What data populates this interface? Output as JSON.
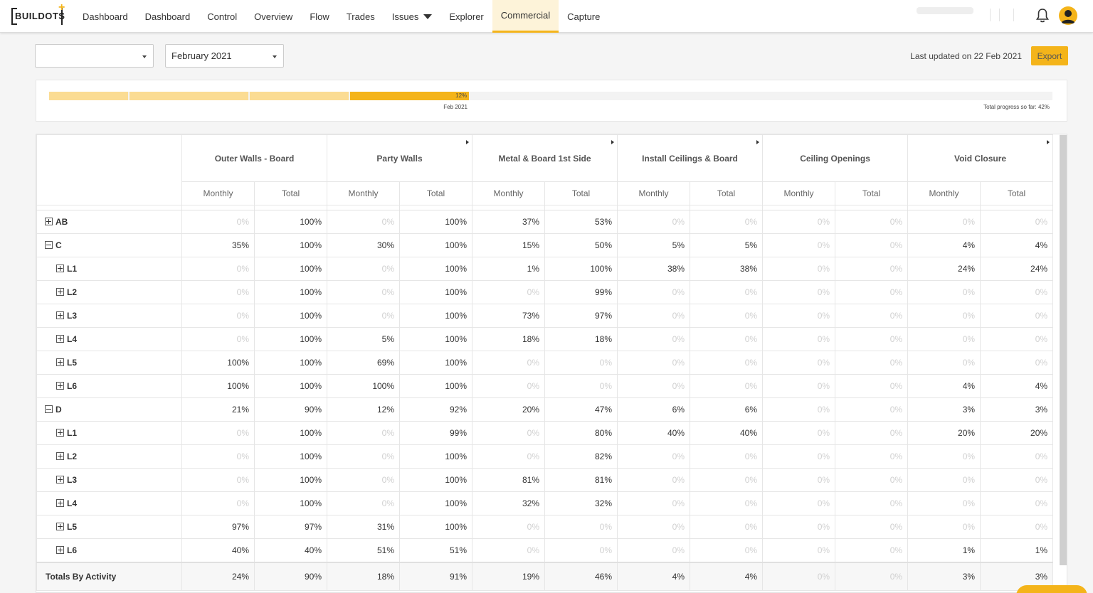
{
  "brand": {
    "logo_text": "BUILDOTS",
    "accent": "#f4b41a"
  },
  "nav": {
    "items": [
      {
        "label": "Dashboard",
        "name": "nav-dashboard-1"
      },
      {
        "label": "Dashboard",
        "name": "nav-dashboard-2"
      },
      {
        "label": "Control",
        "name": "nav-control"
      },
      {
        "label": "Overview",
        "name": "nav-overview"
      },
      {
        "label": "Flow",
        "name": "nav-flow"
      },
      {
        "label": "Trades",
        "name": "nav-trades"
      },
      {
        "label": "Issues",
        "name": "nav-issues",
        "dropdown": true
      },
      {
        "label": "Explorer",
        "name": "nav-explorer"
      },
      {
        "label": "Commercial",
        "name": "nav-commercial",
        "active": true
      },
      {
        "label": "Capture",
        "name": "nav-capture"
      }
    ],
    "icons": [
      "bell-icon",
      "user-avatar-icon"
    ]
  },
  "controls": {
    "project_select": "",
    "month_select": "February 2021",
    "last_updated": "Last updated on 22 Feb 2021",
    "export_label": "Export"
  },
  "progress": {
    "segments_fraction": [
      0.08,
      0.12,
      0.1,
      0.12
    ],
    "current_label": "12%",
    "current_date": "Feb 2021",
    "total_label": "Total progress so far: 42%",
    "total_fraction": 0.42
  },
  "table": {
    "activities": [
      {
        "name": "Outer Walls - Board",
        "sortable": false
      },
      {
        "name": "Party Walls",
        "sortable": true
      },
      {
        "name": "Metal & Board 1st Side",
        "sortable": true
      },
      {
        "name": "Install Ceilings & Board",
        "sortable": true
      },
      {
        "name": "Ceiling Openings",
        "sortable": false
      },
      {
        "name": "Void Closure",
        "sortable": true
      }
    ],
    "sub_headers": [
      "Monthly",
      "Total"
    ],
    "rows": [
      {
        "label": "AB",
        "level": 0,
        "toggle": "plus",
        "values": [
          "0%",
          "100%",
          "0%",
          "100%",
          "37%",
          "53%",
          "0%",
          "0%",
          "0%",
          "0%",
          "0%",
          "0%"
        ]
      },
      {
        "label": "C",
        "level": 0,
        "toggle": "minus",
        "values": [
          "35%",
          "100%",
          "30%",
          "100%",
          "15%",
          "50%",
          "5%",
          "5%",
          "0%",
          "0%",
          "4%",
          "4%"
        ]
      },
      {
        "label": "L1",
        "level": 1,
        "toggle": "plus",
        "values": [
          "0%",
          "100%",
          "0%",
          "100%",
          "1%",
          "100%",
          "38%",
          "38%",
          "0%",
          "0%",
          "24%",
          "24%"
        ]
      },
      {
        "label": "L2",
        "level": 1,
        "toggle": "plus",
        "values": [
          "0%",
          "100%",
          "0%",
          "100%",
          "0%",
          "99%",
          "0%",
          "0%",
          "0%",
          "0%",
          "0%",
          "0%"
        ]
      },
      {
        "label": "L3",
        "level": 1,
        "toggle": "plus",
        "values": [
          "0%",
          "100%",
          "0%",
          "100%",
          "73%",
          "97%",
          "0%",
          "0%",
          "0%",
          "0%",
          "0%",
          "0%"
        ]
      },
      {
        "label": "L4",
        "level": 1,
        "toggle": "plus",
        "values": [
          "0%",
          "100%",
          "5%",
          "100%",
          "18%",
          "18%",
          "0%",
          "0%",
          "0%",
          "0%",
          "0%",
          "0%"
        ]
      },
      {
        "label": "L5",
        "level": 1,
        "toggle": "plus",
        "values": [
          "100%",
          "100%",
          "69%",
          "100%",
          "0%",
          "0%",
          "0%",
          "0%",
          "0%",
          "0%",
          "0%",
          "0%"
        ]
      },
      {
        "label": "L6",
        "level": 1,
        "toggle": "plus",
        "values": [
          "100%",
          "100%",
          "100%",
          "100%",
          "0%",
          "0%",
          "0%",
          "0%",
          "0%",
          "0%",
          "4%",
          "4%"
        ]
      },
      {
        "label": "D",
        "level": 0,
        "toggle": "minus",
        "values": [
          "21%",
          "90%",
          "12%",
          "92%",
          "20%",
          "47%",
          "6%",
          "6%",
          "0%",
          "0%",
          "3%",
          "3%"
        ]
      },
      {
        "label": "L1",
        "level": 1,
        "toggle": "plus",
        "values": [
          "0%",
          "100%",
          "0%",
          "99%",
          "0%",
          "80%",
          "40%",
          "40%",
          "0%",
          "0%",
          "20%",
          "20%"
        ]
      },
      {
        "label": "L2",
        "level": 1,
        "toggle": "plus",
        "values": [
          "0%",
          "100%",
          "0%",
          "100%",
          "0%",
          "82%",
          "0%",
          "0%",
          "0%",
          "0%",
          "0%",
          "0%"
        ]
      },
      {
        "label": "L3",
        "level": 1,
        "toggle": "plus",
        "values": [
          "0%",
          "100%",
          "0%",
          "100%",
          "81%",
          "81%",
          "0%",
          "0%",
          "0%",
          "0%",
          "0%",
          "0%"
        ]
      },
      {
        "label": "L4",
        "level": 1,
        "toggle": "plus",
        "values": [
          "0%",
          "100%",
          "0%",
          "100%",
          "32%",
          "32%",
          "0%",
          "0%",
          "0%",
          "0%",
          "0%",
          "0%"
        ]
      },
      {
        "label": "L5",
        "level": 1,
        "toggle": "plus",
        "values": [
          "97%",
          "97%",
          "31%",
          "100%",
          "0%",
          "0%",
          "0%",
          "0%",
          "0%",
          "0%",
          "0%",
          "0%"
        ]
      },
      {
        "label": "L6",
        "level": 1,
        "toggle": "plus",
        "values": [
          "40%",
          "40%",
          "51%",
          "51%",
          "0%",
          "0%",
          "0%",
          "0%",
          "0%",
          "0%",
          "1%",
          "1%"
        ]
      }
    ],
    "totals": {
      "label": "Totals By Activity",
      "values": [
        "24%",
        "90%",
        "18%",
        "91%",
        "19%",
        "46%",
        "4%",
        "4%",
        "0%",
        "0%",
        "3%",
        "3%"
      ]
    }
  }
}
